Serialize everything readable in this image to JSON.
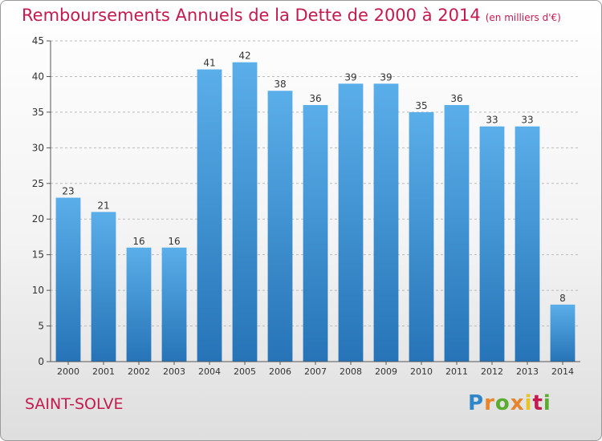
{
  "header": {
    "title": "Remboursements Annuels de la Dette de 2000 à 2014",
    "unit": "(en milliers d'€)"
  },
  "footer": {
    "commune": "SAINT-SOLVE",
    "logo": "Proxiti"
  },
  "colors": {
    "title": "#c41a4e",
    "bar_top": "#5aaee9",
    "bar_bottom": "#2674b7",
    "grid": "#bbbbbb"
  },
  "chart_data": {
    "type": "bar",
    "title": "Remboursements Annuels de la Dette de 2000 à 2014",
    "ylabel": "en milliers d'€",
    "xlabel": "",
    "categories": [
      "2000",
      "2001",
      "2002",
      "2003",
      "2004",
      "2005",
      "2006",
      "2007",
      "2008",
      "2009",
      "2010",
      "2011",
      "2012",
      "2013",
      "2014"
    ],
    "values": [
      23,
      21,
      16,
      16,
      41,
      42,
      38,
      36,
      39,
      39,
      35,
      36,
      33,
      33,
      8
    ],
    "ylim": [
      0,
      45
    ],
    "yticks": [
      0,
      5,
      10,
      15,
      20,
      25,
      30,
      35,
      40,
      45
    ],
    "grid": true
  }
}
